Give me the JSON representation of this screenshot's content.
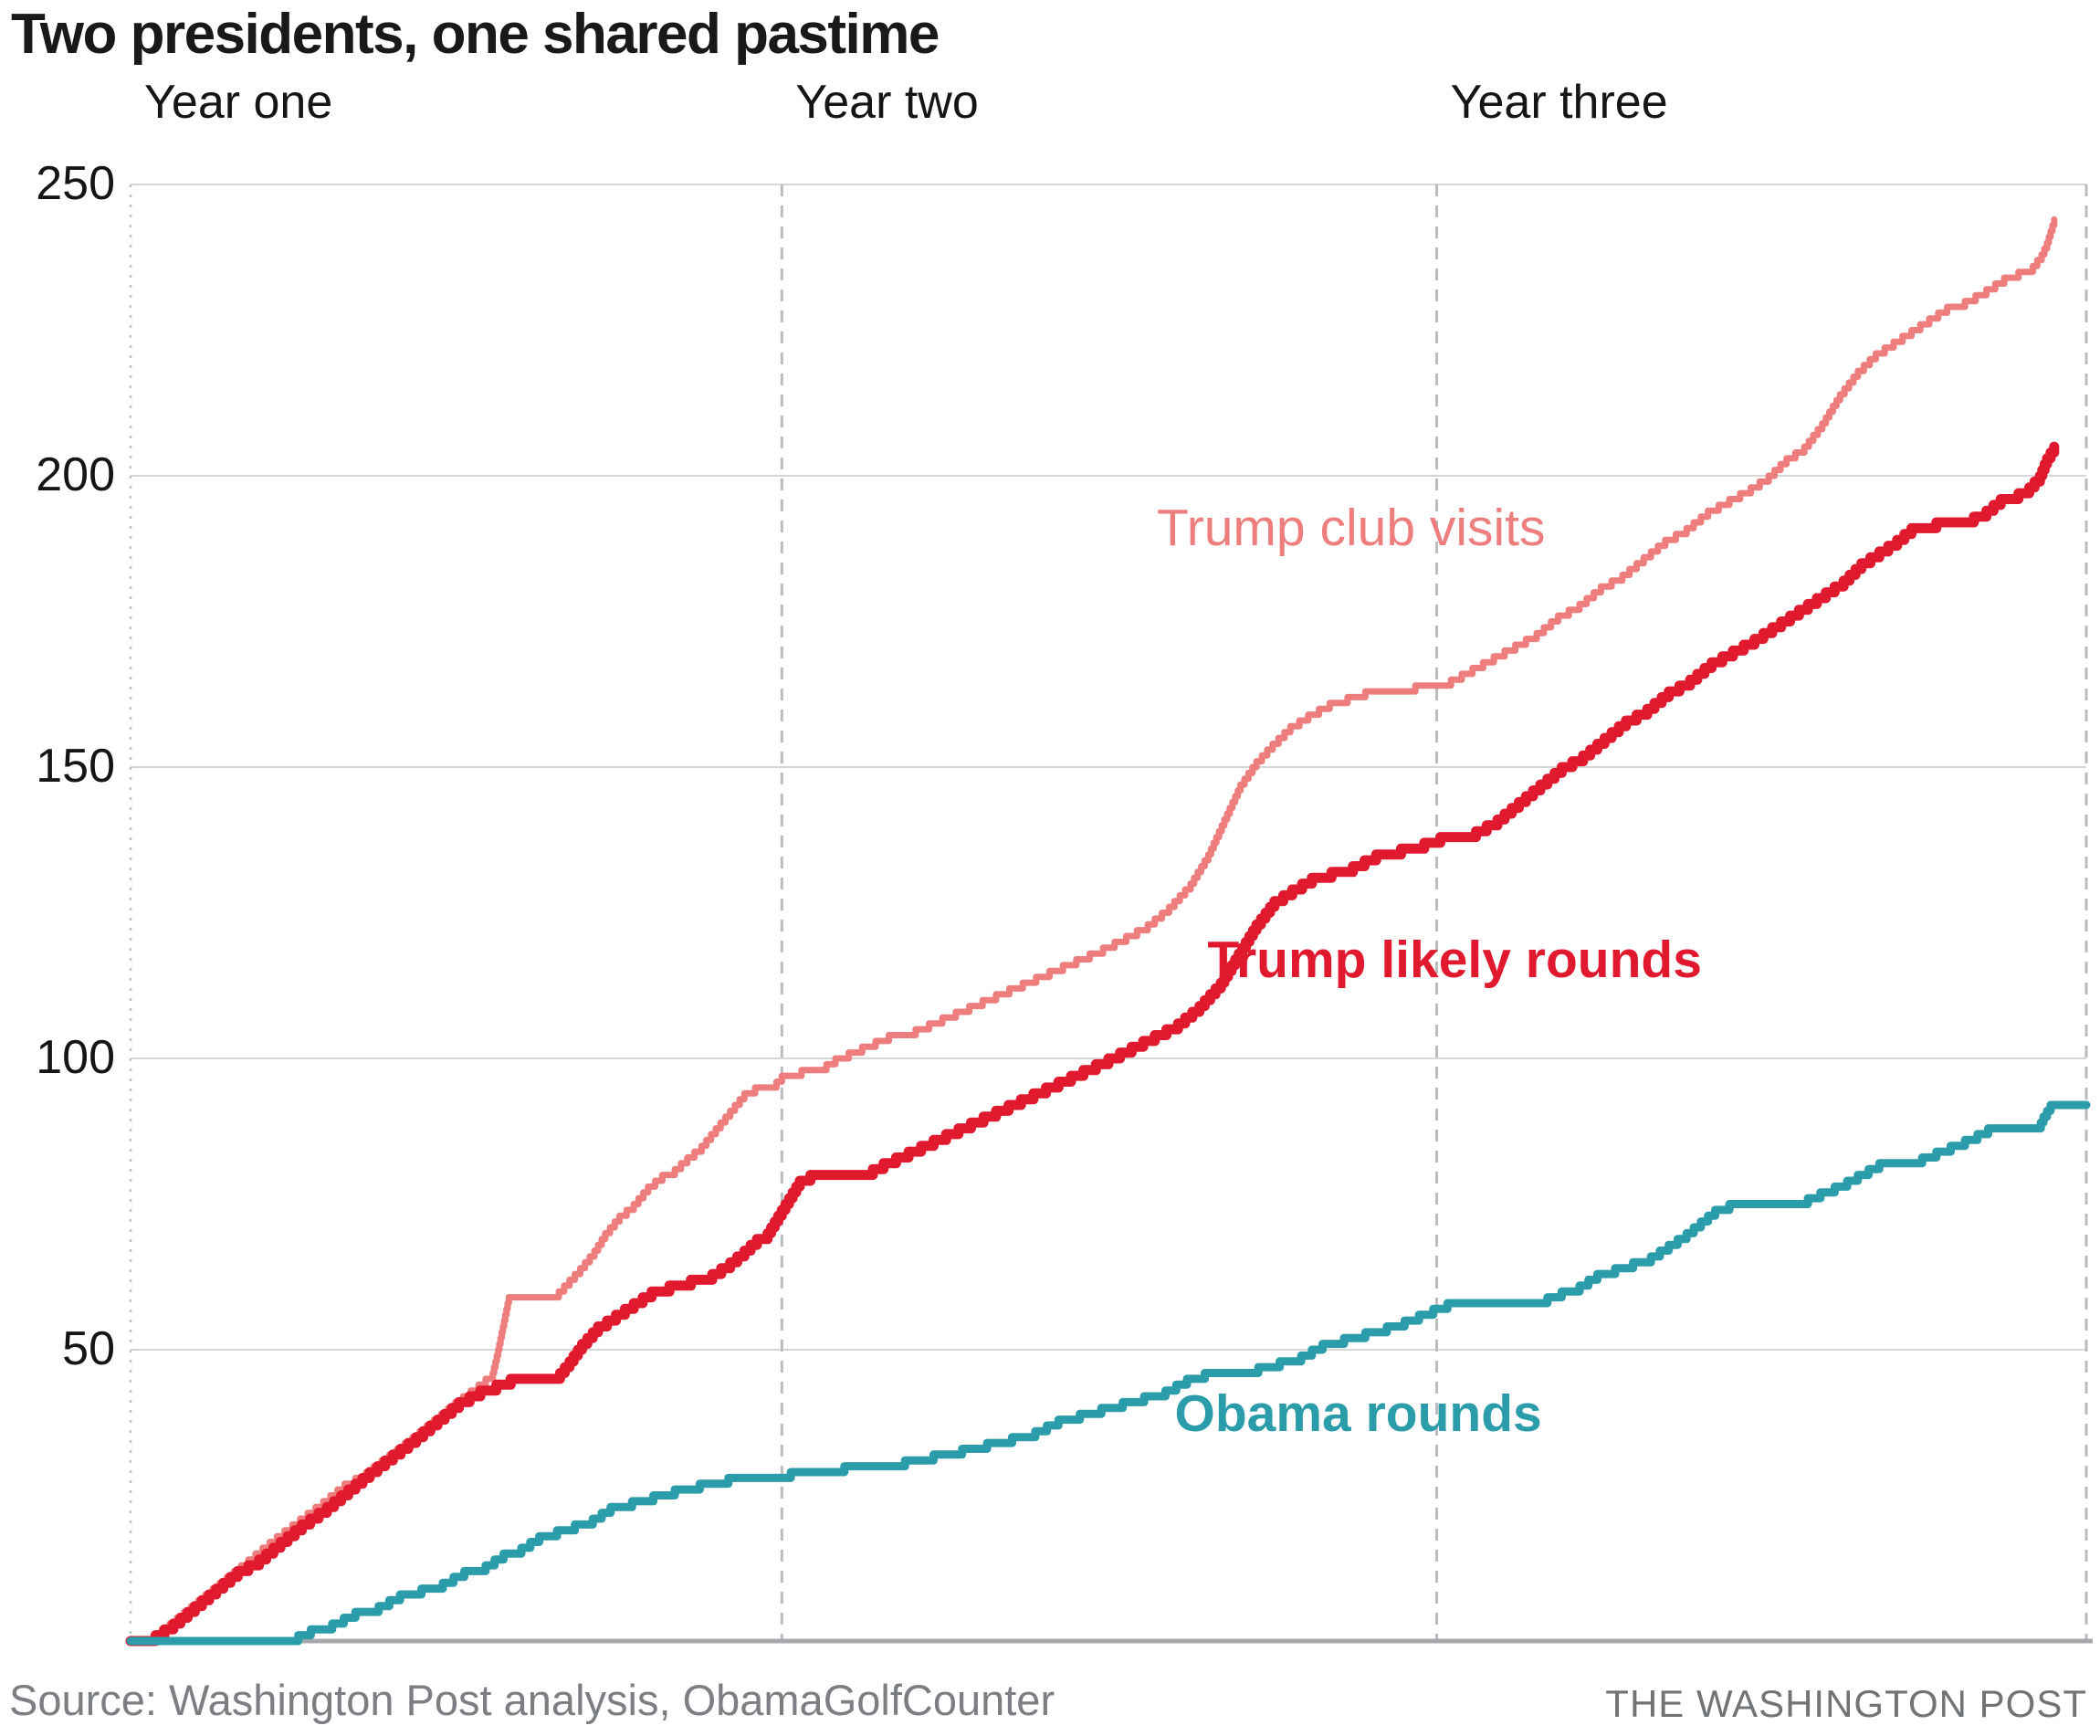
{
  "title": "Two presidents, one shared pastime",
  "source": "Source: Washington Post analysis, ObamaGolfCounter",
  "credit": "THE WASHINGTON POST",
  "colors": {
    "title": "#191919",
    "axis_text": "#151515",
    "grid_horizontal": "#d6d6d6",
    "grid_vertical_dashed": "#b9bcbe",
    "baseline_axis": "#a6a8ab",
    "source_text": "#7b7e82",
    "credit_text": "#717477",
    "trump_club_visits": "#ee7d7d",
    "trump_likely_rounds": "#e0192f",
    "obama_rounds": "#2b9daa"
  },
  "chart_data": {
    "type": "line",
    "subtype": "cumulative-step",
    "title": "Two presidents, one shared pastime",
    "xlabel": "",
    "ylabel": "",
    "x_axis": {
      "unit": "days in office",
      "domain": [
        0,
        1096
      ],
      "year_labels": [
        "Year one",
        "Year two",
        "Year three"
      ],
      "year_boundaries_days": [
        0,
        365,
        732,
        1096
      ],
      "gridlines": "dashed-vertical"
    },
    "y_axis": {
      "ticks": [
        50,
        100,
        150,
        200,
        250
      ],
      "range": [
        0,
        250
      ],
      "gridlines": "solid-horizontal"
    },
    "legend_position": "inline-annotations",
    "series": [
      {
        "name": "Trump club visits",
        "color": "#ee7d7d",
        "stroke_width": 7,
        "label_bold": false,
        "label_anchor": {
          "day": 684,
          "value": 191
        },
        "end_value": 244,
        "points": [
          [
            0,
            0
          ],
          [
            13,
            1
          ],
          [
            22,
            3
          ],
          [
            34,
            6
          ],
          [
            46,
            9
          ],
          [
            58,
            12
          ],
          [
            70,
            15
          ],
          [
            82,
            18
          ],
          [
            95,
            21
          ],
          [
            108,
            24
          ],
          [
            120,
            27
          ],
          [
            132,
            29
          ],
          [
            145,
            32
          ],
          [
            158,
            35
          ],
          [
            170,
            38
          ],
          [
            182,
            41
          ],
          [
            195,
            44
          ],
          [
            203,
            46
          ],
          [
            206,
            50
          ],
          [
            208,
            53
          ],
          [
            210,
            56
          ],
          [
            212,
            59
          ],
          [
            240,
            60
          ],
          [
            252,
            64
          ],
          [
            260,
            67
          ],
          [
            266,
            70
          ],
          [
            274,
            73
          ],
          [
            282,
            75
          ],
          [
            290,
            78
          ],
          [
            298,
            80
          ],
          [
            305,
            81
          ],
          [
            312,
            83
          ],
          [
            320,
            85
          ],
          [
            328,
            88
          ],
          [
            336,
            91
          ],
          [
            344,
            94
          ],
          [
            350,
            95
          ],
          [
            362,
            96
          ],
          [
            365,
            97
          ],
          [
            376,
            98
          ],
          [
            390,
            99
          ],
          [
            395,
            100
          ],
          [
            410,
            102
          ],
          [
            425,
            104
          ],
          [
            440,
            105
          ],
          [
            455,
            107
          ],
          [
            470,
            109
          ],
          [
            485,
            111
          ],
          [
            500,
            113
          ],
          [
            515,
            115
          ],
          [
            530,
            117
          ],
          [
            545,
            119
          ],
          [
            558,
            121
          ],
          [
            570,
            123
          ],
          [
            582,
            126
          ],
          [
            594,
            130
          ],
          [
            604,
            135
          ],
          [
            613,
            141
          ],
          [
            622,
            147
          ],
          [
            631,
            151
          ],
          [
            640,
            154
          ],
          [
            650,
            157
          ],
          [
            660,
            159
          ],
          [
            672,
            161
          ],
          [
            682,
            162
          ],
          [
            692,
            163
          ],
          [
            710,
            163
          ],
          [
            720,
            164
          ],
          [
            732,
            164
          ],
          [
            740,
            165
          ],
          [
            752,
            167
          ],
          [
            764,
            169
          ],
          [
            776,
            171
          ],
          [
            788,
            173
          ],
          [
            800,
            176
          ],
          [
            812,
            178
          ],
          [
            824,
            181
          ],
          [
            836,
            183
          ],
          [
            848,
            186
          ],
          [
            860,
            189
          ],
          [
            872,
            191
          ],
          [
            884,
            194
          ],
          [
            896,
            196
          ],
          [
            908,
            198
          ],
          [
            918,
            200
          ],
          [
            928,
            203
          ],
          [
            938,
            205
          ],
          [
            948,
            209
          ],
          [
            958,
            214
          ],
          [
            968,
            218
          ],
          [
            978,
            221
          ],
          [
            988,
            223
          ],
          [
            998,
            225
          ],
          [
            1008,
            227
          ],
          [
            1018,
            229
          ],
          [
            1028,
            230
          ],
          [
            1040,
            232
          ],
          [
            1050,
            234
          ],
          [
            1058,
            235
          ],
          [
            1066,
            236
          ],
          [
            1071,
            238
          ],
          [
            1074,
            240
          ],
          [
            1078,
            244
          ]
        ]
      },
      {
        "name": "Trump likely rounds",
        "color": "#e0192f",
        "stroke_width": 11,
        "label_bold": true,
        "label_anchor": {
          "day": 742,
          "value": 117
        },
        "end_value": 205,
        "points": [
          [
            0,
            0
          ],
          [
            14,
            1
          ],
          [
            24,
            3
          ],
          [
            36,
            6
          ],
          [
            48,
            9
          ],
          [
            60,
            12
          ],
          [
            72,
            14
          ],
          [
            84,
            17
          ],
          [
            96,
            20
          ],
          [
            110,
            23
          ],
          [
            122,
            26
          ],
          [
            134,
            29
          ],
          [
            147,
            32
          ],
          [
            160,
            35
          ],
          [
            172,
            38
          ],
          [
            184,
            41
          ],
          [
            196,
            43
          ],
          [
            205,
            44
          ],
          [
            213,
            45
          ],
          [
            238,
            45
          ],
          [
            246,
            48
          ],
          [
            253,
            51
          ],
          [
            262,
            54
          ],
          [
            272,
            56
          ],
          [
            282,
            58
          ],
          [
            292,
            60
          ],
          [
            302,
            61
          ],
          [
            314,
            62
          ],
          [
            326,
            63
          ],
          [
            336,
            65
          ],
          [
            344,
            67
          ],
          [
            351,
            69
          ],
          [
            357,
            70
          ],
          [
            363,
            73
          ],
          [
            369,
            76
          ],
          [
            375,
            79
          ],
          [
            381,
            80
          ],
          [
            410,
            80
          ],
          [
            422,
            82
          ],
          [
            436,
            84
          ],
          [
            450,
            86
          ],
          [
            464,
            88
          ],
          [
            478,
            90
          ],
          [
            492,
            92
          ],
          [
            506,
            94
          ],
          [
            520,
            96
          ],
          [
            534,
            98
          ],
          [
            548,
            100
          ],
          [
            561,
            102
          ],
          [
            574,
            104
          ],
          [
            587,
            106
          ],
          [
            599,
            109
          ],
          [
            611,
            113
          ],
          [
            621,
            118
          ],
          [
            631,
            123
          ],
          [
            641,
            127
          ],
          [
            651,
            129
          ],
          [
            662,
            131
          ],
          [
            673,
            132
          ],
          [
            685,
            133
          ],
          [
            698,
            135
          ],
          [
            712,
            136
          ],
          [
            725,
            137
          ],
          [
            734,
            138
          ],
          [
            754,
            139
          ],
          [
            766,
            141
          ],
          [
            778,
            144
          ],
          [
            790,
            147
          ],
          [
            802,
            150
          ],
          [
            814,
            152
          ],
          [
            826,
            155
          ],
          [
            838,
            158
          ],
          [
            850,
            160
          ],
          [
            862,
            163
          ],
          [
            874,
            165
          ],
          [
            886,
            168
          ],
          [
            898,
            170
          ],
          [
            910,
            172
          ],
          [
            920,
            174
          ],
          [
            930,
            176
          ],
          [
            940,
            178
          ],
          [
            950,
            180
          ],
          [
            960,
            182
          ],
          [
            970,
            185
          ],
          [
            980,
            187
          ],
          [
            990,
            189
          ],
          [
            998,
            191
          ],
          [
            1012,
            192
          ],
          [
            1026,
            192
          ],
          [
            1040,
            194
          ],
          [
            1048,
            196
          ],
          [
            1058,
            197
          ],
          [
            1064,
            198
          ],
          [
            1070,
            200
          ],
          [
            1074,
            203
          ],
          [
            1078,
            205
          ]
        ]
      },
      {
        "name": "Obama rounds",
        "color": "#2b9daa",
        "stroke_width": 9,
        "label_bold": true,
        "label_anchor": {
          "day": 688,
          "value": 39
        },
        "end_value": 92,
        "points": [
          [
            0,
            0
          ],
          [
            94,
            1
          ],
          [
            101,
            2
          ],
          [
            113,
            3
          ],
          [
            126,
            5
          ],
          [
            139,
            6
          ],
          [
            151,
            8
          ],
          [
            163,
            9
          ],
          [
            175,
            10
          ],
          [
            187,
            12
          ],
          [
            199,
            13
          ],
          [
            209,
            15
          ],
          [
            219,
            16
          ],
          [
            229,
            18
          ],
          [
            239,
            19
          ],
          [
            249,
            20
          ],
          [
            259,
            21
          ],
          [
            269,
            23
          ],
          [
            281,
            24
          ],
          [
            293,
            25
          ],
          [
            305,
            26
          ],
          [
            319,
            27
          ],
          [
            335,
            28
          ],
          [
            355,
            28
          ],
          [
            370,
            29
          ],
          [
            386,
            29
          ],
          [
            400,
            30
          ],
          [
            417,
            30
          ],
          [
            434,
            31
          ],
          [
            450,
            32
          ],
          [
            466,
            33
          ],
          [
            480,
            34
          ],
          [
            494,
            35
          ],
          [
            507,
            36
          ],
          [
            520,
            38
          ],
          [
            532,
            39
          ],
          [
            544,
            40
          ],
          [
            556,
            41
          ],
          [
            568,
            42
          ],
          [
            580,
            43
          ],
          [
            592,
            45
          ],
          [
            602,
            46
          ],
          [
            618,
            46
          ],
          [
            632,
            47
          ],
          [
            644,
            48
          ],
          [
            656,
            49
          ],
          [
            668,
            51
          ],
          [
            680,
            52
          ],
          [
            692,
            53
          ],
          [
            704,
            54
          ],
          [
            714,
            55
          ],
          [
            722,
            56
          ],
          [
            730,
            57
          ],
          [
            738,
            58
          ],
          [
            786,
            58
          ],
          [
            794,
            59
          ],
          [
            802,
            60
          ],
          [
            812,
            61
          ],
          [
            822,
            63
          ],
          [
            832,
            64
          ],
          [
            842,
            65
          ],
          [
            852,
            66
          ],
          [
            862,
            68
          ],
          [
            872,
            70
          ],
          [
            880,
            72
          ],
          [
            888,
            74
          ],
          [
            896,
            75
          ],
          [
            934,
            75
          ],
          [
            940,
            76
          ],
          [
            947,
            77
          ],
          [
            955,
            78
          ],
          [
            962,
            79
          ],
          [
            968,
            80
          ],
          [
            974,
            81
          ],
          [
            980,
            82
          ],
          [
            996,
            82
          ],
          [
            1004,
            83
          ],
          [
            1012,
            84
          ],
          [
            1020,
            85
          ],
          [
            1028,
            86
          ],
          [
            1035,
            87
          ],
          [
            1041,
            88
          ],
          [
            1069,
            88
          ],
          [
            1072,
            90
          ],
          [
            1076,
            92
          ],
          [
            1096,
            92
          ]
        ]
      }
    ]
  }
}
